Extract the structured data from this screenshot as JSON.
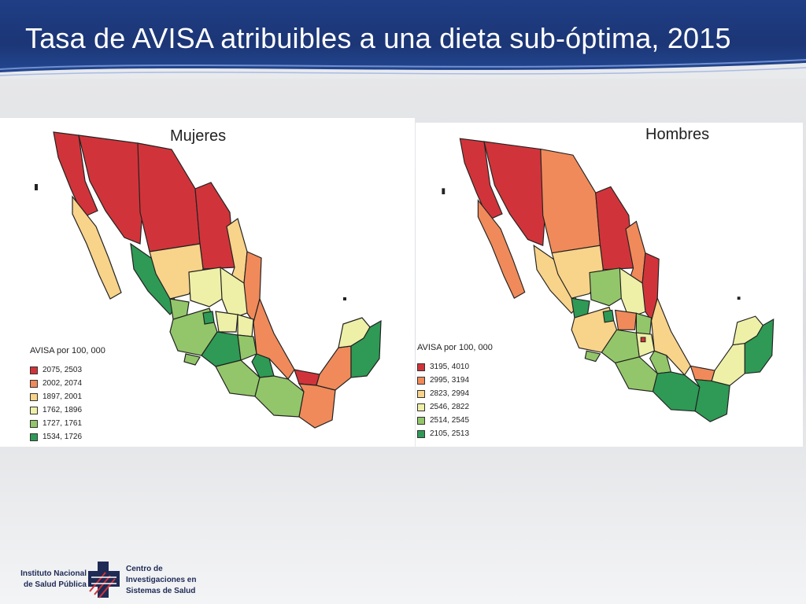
{
  "slide": {
    "title": "Tasa de AVISA atribuibles a una dieta sub-óptima, 2015"
  },
  "maps": {
    "left": {
      "title": "Mujeres",
      "legend_title": "AVISA por 100, 000",
      "classes": [
        {
          "label": "2075, 2503",
          "color": "#d0343a"
        },
        {
          "label": "2002, 2074",
          "color": "#f08a5a"
        },
        {
          "label": "1897, 2001",
          "color": "#f8d38a"
        },
        {
          "label": "1762, 1896",
          "color": "#eef0a8"
        },
        {
          "label": "1727, 1761",
          "color": "#93c66a"
        },
        {
          "label": "1534, 1726",
          "color": "#2e9a55"
        }
      ]
    },
    "right": {
      "title": "Hombres",
      "legend_title": "AVISA por 100, 000",
      "classes": [
        {
          "label": "3195, 4010",
          "color": "#d0343a"
        },
        {
          "label": "2995, 3194",
          "color": "#f08a5a"
        },
        {
          "label": "2823, 2994",
          "color": "#f8d38a"
        },
        {
          "label": "2546, 2822",
          "color": "#eef0a8"
        },
        {
          "label": "2514, 2545",
          "color": "#93c66a"
        },
        {
          "label": "2105, 2513",
          "color": "#2e9a55"
        }
      ]
    }
  },
  "footer": {
    "institution_line1": "Instituto Nacional",
    "institution_line2": "de Salud Pública",
    "center_line1": "Centro de",
    "center_line2": "Investigaciones en",
    "center_line3": "Sistemas de Salud"
  }
}
